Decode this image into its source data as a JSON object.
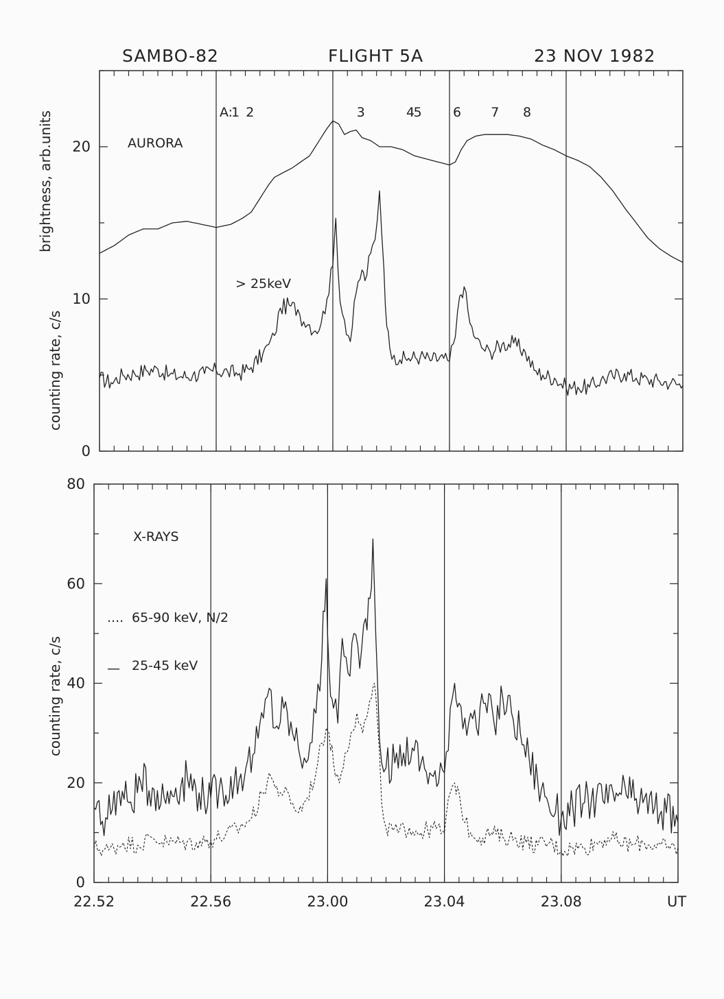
{
  "header": {
    "left": "SAMBO-82",
    "center": "FLIGHT 5A",
    "right": "23 NOV 1982"
  },
  "colors": {
    "ink": "#222222",
    "paper": "#fbfbfb"
  },
  "chart_data": [
    {
      "type": "line",
      "panel": "top",
      "ylabel_upper": "brightness, arb.units",
      "ylabel_lower": "counting rate, c/s",
      "panel_label": "AURORA",
      "y_ticks": [
        0,
        10,
        20
      ],
      "ylim": [
        0,
        25
      ],
      "x_ticks": [
        22.52,
        22.56,
        23.0,
        23.04,
        23.08
      ],
      "x_tick_minutes": [
        52,
        56,
        60,
        64,
        68
      ],
      "xlim_minutes": [
        52,
        72
      ],
      "vlines_minutes": [
        56,
        60,
        64,
        68
      ],
      "arc_markers": {
        "prefix": "A:",
        "labels": [
          "1",
          "2",
          "3",
          "4",
          "5",
          "6",
          "7",
          "8"
        ],
        "minutes": [
          55.6,
          56.1,
          59.9,
          61.6,
          61.85,
          63.2,
          64.5,
          65.6
        ]
      },
      "series": [
        {
          "name": "",
          "style": "solid",
          "role": "aurora brightness",
          "x": [
            52.0,
            52.5,
            53.0,
            53.5,
            54.0,
            54.5,
            55.0,
            55.5,
            56.0,
            56.5,
            56.9,
            57.2,
            57.5,
            57.8,
            58.0,
            58.3,
            58.6,
            58.9,
            59.2,
            59.5,
            59.8,
            60.0,
            60.2,
            60.4,
            60.6,
            60.8,
            61.0,
            61.3,
            61.6,
            62.0,
            62.4,
            62.8,
            63.2,
            63.6,
            64.0,
            64.2,
            64.4,
            64.6,
            64.9,
            65.2,
            65.6,
            66.0,
            66.4,
            66.8,
            67.2,
            67.6,
            68.0,
            68.4,
            68.8,
            69.2,
            69.6,
            70.0,
            70.4,
            70.8,
            71.2,
            71.6,
            72.0
          ],
          "y": [
            13.0,
            13.5,
            14.2,
            14.6,
            14.6,
            15.0,
            15.1,
            14.9,
            14.7,
            14.9,
            15.3,
            15.7,
            16.6,
            17.5,
            18.0,
            18.3,
            18.6,
            19.0,
            19.4,
            20.3,
            21.2,
            21.7,
            21.5,
            20.8,
            21.0,
            21.1,
            20.6,
            20.4,
            20.0,
            20.0,
            19.8,
            19.4,
            19.2,
            19.0,
            18.8,
            19.0,
            19.8,
            20.4,
            20.7,
            20.8,
            20.8,
            20.8,
            20.7,
            20.5,
            20.1,
            19.8,
            19.4,
            19.1,
            18.7,
            18.0,
            17.1,
            16.0,
            15.0,
            14.0,
            13.3,
            12.8,
            12.4
          ]
        },
        {
          "name": "> 25keV",
          "style": "solid",
          "role": "counting rate",
          "x": [
            52.0,
            52.4,
            52.8,
            53.2,
            53.6,
            54.0,
            54.4,
            54.8,
            55.2,
            55.6,
            56.0,
            56.4,
            56.8,
            57.2,
            57.6,
            57.8,
            58.0,
            58.2,
            58.5,
            58.8,
            59.0,
            59.2,
            59.4,
            59.6,
            59.8,
            60.0,
            60.1,
            60.25,
            60.4,
            60.6,
            60.8,
            61.0,
            61.1,
            61.3,
            61.45,
            61.6,
            61.75,
            61.85,
            61.95,
            62.1,
            62.3,
            62.6,
            63.0,
            63.4,
            63.8,
            64.0,
            64.2,
            64.35,
            64.5,
            64.7,
            64.9,
            65.1,
            65.4,
            65.8,
            66.2,
            66.6,
            66.9,
            67.2,
            67.6,
            68.0,
            68.4,
            68.8,
            69.2,
            69.6,
            70.0,
            70.4,
            70.8,
            71.2,
            71.6,
            72.0
          ],
          "y": [
            4.8,
            4.5,
            5.0,
            5.1,
            5.3,
            5.4,
            5.0,
            4.9,
            5.0,
            5.1,
            5.3,
            5.2,
            5.1,
            5.5,
            6.4,
            7.0,
            7.6,
            9.4,
            9.6,
            9.3,
            8.5,
            8.3,
            7.9,
            8.4,
            10.0,
            12.2,
            15.3,
            9.8,
            8.6,
            7.2,
            10.4,
            11.9,
            11.2,
            13.0,
            13.9,
            17.1,
            12.0,
            8.2,
            6.8,
            6.3,
            6.0,
            6.1,
            6.2,
            6.0,
            6.1,
            5.9,
            7.5,
            10.2,
            10.8,
            8.4,
            7.4,
            6.8,
            6.5,
            7.0,
            7.1,
            6.5,
            5.3,
            5.0,
            4.8,
            4.2,
            4.2,
            4.2,
            4.7,
            4.9,
            5.1,
            4.8,
            4.7,
            4.6,
            4.5,
            4.3
          ]
        }
      ]
    },
    {
      "type": "line",
      "panel": "bottom",
      "ylabel": "counting rate, c/s",
      "panel_label": "X-RAYS",
      "y_ticks": [
        0,
        20,
        40,
        60,
        80
      ],
      "ylim": [
        0,
        80
      ],
      "x_ticks": [
        22.52,
        22.56,
        23.0,
        23.04,
        23.08
      ],
      "x_tick_labels": [
        "22.52",
        "22.56",
        "23.00",
        "23.04",
        "23.08"
      ],
      "x_unit_label": "UT",
      "x_tick_minutes": [
        52,
        56,
        60,
        64,
        68
      ],
      "xlim_minutes": [
        52,
        72
      ],
      "vlines_minutes": [
        56,
        60,
        64,
        68
      ],
      "series": [
        {
          "name": "65-90 keV, N/2",
          "legend_prefix": "....",
          "style": "dashed",
          "x": [
            52.0,
            52.5,
            53.0,
            53.5,
            54.0,
            54.5,
            55.0,
            55.5,
            56.0,
            56.5,
            57.0,
            57.4,
            57.8,
            58.0,
            58.2,
            58.5,
            58.8,
            59.0,
            59.3,
            59.6,
            59.8,
            59.95,
            60.05,
            60.2,
            60.4,
            60.6,
            60.8,
            61.0,
            61.2,
            61.4,
            61.5,
            61.6,
            61.7,
            61.85,
            62.0,
            62.4,
            62.8,
            63.2,
            63.6,
            64.0,
            64.2,
            64.35,
            64.5,
            64.7,
            64.9,
            65.2,
            65.6,
            66.0,
            66.4,
            66.8,
            67.2,
            67.6,
            68.0,
            68.4,
            68.8,
            69.2,
            69.6,
            70.0,
            70.4,
            70.8,
            71.2,
            71.6,
            72.0
          ],
          "y": [
            7,
            6.5,
            8,
            7.5,
            9,
            8,
            8,
            8,
            8.5,
            9.5,
            11,
            13,
            18,
            22,
            19,
            18,
            16,
            14,
            17,
            22,
            28,
            31,
            30,
            24,
            20,
            26,
            30,
            34,
            30,
            35,
            37,
            40,
            33,
            16,
            11,
            10,
            11,
            10,
            11,
            10,
            18,
            20,
            18,
            12,
            10,
            9,
            10,
            9,
            9,
            8,
            7.5,
            8,
            6.5,
            7,
            7,
            8,
            9,
            8,
            7.5,
            8,
            7.5,
            7,
            7
          ]
        },
        {
          "name": "25-45 keV",
          "legend_prefix": "—",
          "style": "solid",
          "x": [
            52.0,
            52.4,
            52.8,
            53.2,
            53.6,
            54.0,
            54.4,
            54.8,
            55.2,
            55.6,
            56.0,
            56.4,
            56.8,
            57.2,
            57.5,
            57.8,
            58.0,
            58.2,
            58.5,
            58.8,
            59.0,
            59.2,
            59.4,
            59.6,
            59.8,
            59.95,
            60.05,
            60.2,
            60.35,
            60.5,
            60.7,
            60.9,
            61.1,
            61.3,
            61.45,
            61.55,
            61.7,
            61.85,
            62.0,
            62.3,
            62.6,
            62.9,
            63.2,
            63.5,
            63.8,
            64.0,
            64.2,
            64.35,
            64.5,
            64.7,
            64.9,
            65.1,
            65.4,
            65.7,
            66.0,
            66.3,
            66.6,
            66.9,
            67.2,
            67.5,
            67.8,
            68.0,
            68.4,
            68.8,
            69.2,
            69.6,
            70.0,
            70.4,
            70.8,
            71.2,
            71.6,
            72.0
          ],
          "y": [
            15,
            13,
            18,
            16,
            20,
            19,
            17,
            19,
            21,
            18,
            17,
            19,
            20,
            23,
            26,
            33,
            39,
            31,
            35,
            30,
            27,
            25,
            28,
            34,
            45,
            61,
            43,
            35,
            32,
            49,
            42,
            50,
            43,
            53,
            57,
            69,
            42,
            24,
            23,
            24,
            26,
            27,
            24,
            22,
            20,
            22,
            35,
            40,
            36,
            33,
            34,
            31,
            36,
            32,
            37,
            34,
            30,
            25,
            20,
            17,
            14,
            13,
            15,
            16,
            17,
            16,
            18,
            17,
            16,
            15,
            14,
            12
          ]
        }
      ]
    }
  ]
}
